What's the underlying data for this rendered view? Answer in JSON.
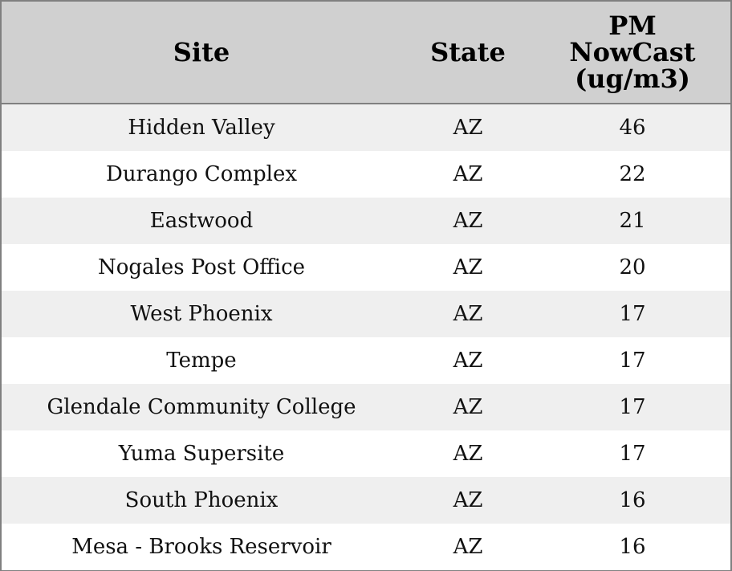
{
  "table": {
    "headers": [
      "Site",
      "State",
      "PM NowCast (ug/m3)"
    ],
    "rows": [
      [
        "Hidden Valley",
        "AZ",
        46
      ],
      [
        "Durango Complex",
        "AZ",
        22
      ],
      [
        "Eastwood",
        "AZ",
        21
      ],
      [
        "Nogales Post Office",
        "AZ",
        20
      ],
      [
        "West Phoenix",
        "AZ",
        17
      ],
      [
        "Tempe",
        "AZ",
        17
      ],
      [
        "Glendale Community College",
        "AZ",
        17
      ],
      [
        "Yuma Supersite",
        "AZ",
        17
      ],
      [
        "South Phoenix",
        "AZ",
        16
      ],
      [
        "Mesa - Brooks Reservoir",
        "AZ",
        16
      ]
    ]
  }
}
